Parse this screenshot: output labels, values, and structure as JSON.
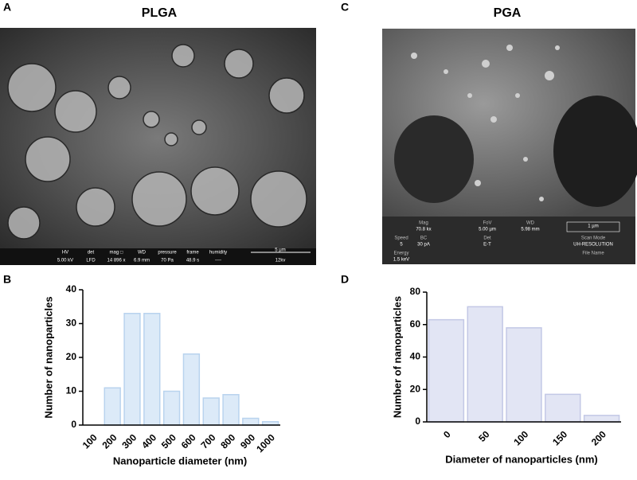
{
  "panels": {
    "A": {
      "label": "A",
      "title": "PLGA",
      "info_bar": {
        "fields": [
          {
            "label": "HV",
            "value": "5.00 kV"
          },
          {
            "label": "det",
            "value": "LFD"
          },
          {
            "label": "mag □",
            "value": "14 896 x"
          },
          {
            "label": "WD",
            "value": "6.9 mm"
          },
          {
            "label": "pressure",
            "value": "70 Pa"
          },
          {
            "label": "frame",
            "value": "48.9 s"
          },
          {
            "label": "humidity",
            "value": "----"
          }
        ],
        "scale": "5 μm",
        "note": "12kv"
      }
    },
    "C": {
      "label": "C",
      "title": "PGA",
      "info_bar": {
        "fields": [
          {
            "label": "Mag",
            "value": "70.8 kx"
          },
          {
            "label": "FoV",
            "value": "5.00 µm"
          },
          {
            "label": "WD",
            "value": "5.98 mm"
          },
          {
            "label": "Speed",
            "value": "5"
          },
          {
            "label": "BC",
            "value": "30 pA"
          },
          {
            "label": "Det",
            "value": "E-T"
          },
          {
            "label": "Scan Mode",
            "value": "UH-RESOLUTION"
          },
          {
            "label": "Energy",
            "value": "1.5 keV"
          }
        ],
        "scale": "1 µm",
        "note": "File Name"
      }
    }
  },
  "chart_data": [
    {
      "type": "bar",
      "panel_label": "B",
      "x_label": "Nanoparticle diameter (nm)",
      "y_label": "Number of nanoparticles",
      "categories": [
        "100",
        "200",
        "300",
        "400",
        "500",
        "600",
        "700",
        "800",
        "900",
        "1000"
      ],
      "values": [
        0,
        11,
        33,
        33,
        10,
        21,
        8,
        9,
        2,
        1
      ],
      "color": "#dceaf8",
      "ylim": [
        0,
        40
      ],
      "yticks": [
        0,
        10,
        20,
        30,
        40
      ]
    },
    {
      "type": "bar",
      "panel_label": "D",
      "x_label": "Diameter of nanoparticles (nm)",
      "y_label": "Number of nanoparticles",
      "categories": [
        "0",
        "50",
        "100",
        "150",
        "200"
      ],
      "values": [
        63,
        71,
        58,
        17,
        4
      ],
      "color": "#e2e5f4",
      "ylim": [
        0,
        80
      ],
      "yticks": [
        0,
        20,
        40,
        60,
        80
      ]
    }
  ]
}
